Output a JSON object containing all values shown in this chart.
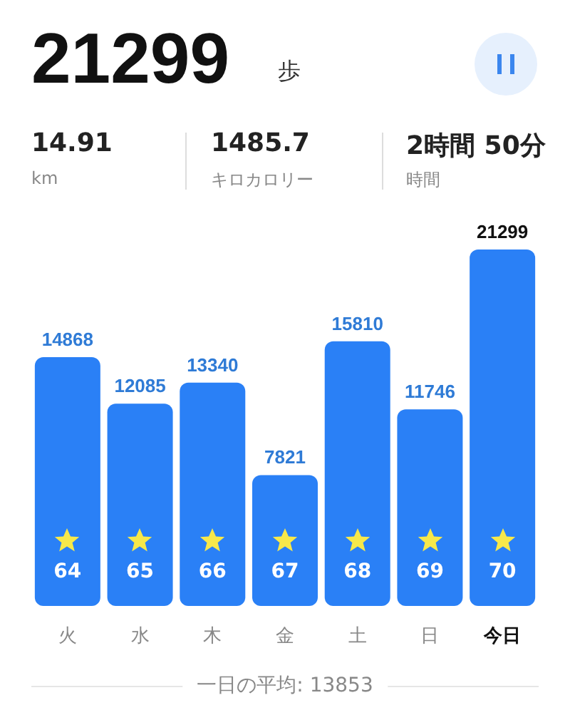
{
  "chart_data": {
    "type": "bar",
    "title": "21299",
    "categories": [
      "火",
      "水",
      "木",
      "金",
      "土",
      "日",
      "今日"
    ],
    "values": [
      14868,
      12085,
      13340,
      7821,
      15810,
      11746,
      21299
    ],
    "color": "#2a80f6",
    "data_labels": true,
    "annotations": [
      "歩",
      "14.91",
      "km",
      "1485.7",
      "キロカロリー",
      "2時間 50分",
      "時間",
      "一日の平均: 13853",
      "64",
      "65",
      "66",
      "67",
      "68",
      "69",
      "70"
    ]
  }
}
